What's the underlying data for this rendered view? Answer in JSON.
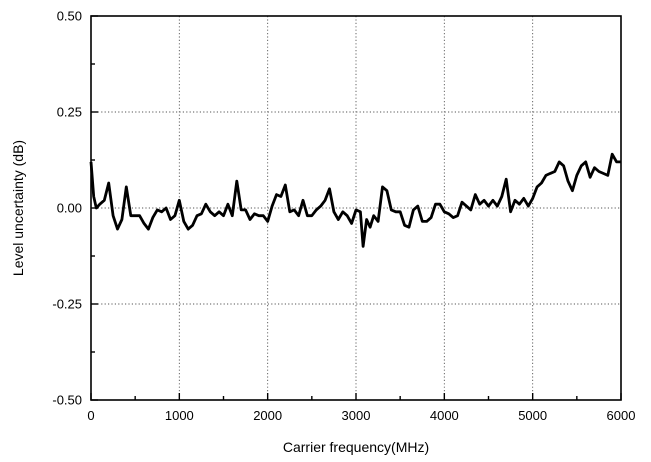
{
  "chart_data": {
    "type": "line",
    "title": "",
    "xlabel": "Carrier frequency(MHz)",
    "ylabel": "Level uncertainty (dB)",
    "xlim": [
      0,
      6000
    ],
    "ylim": [
      -0.5,
      0.5
    ],
    "grid": true,
    "xticks": [
      "0",
      "1000",
      "2000",
      "3000",
      "4000",
      "5000",
      "6000"
    ],
    "yticks": [
      "-0.50",
      "-0.25",
      "0.00",
      "0.25",
      "0.50"
    ],
    "series": [
      {
        "x": [
          0,
          30,
          60,
          100,
          150,
          200,
          250,
          300,
          350,
          400,
          450,
          500,
          550,
          600,
          650,
          700,
          750,
          800,
          850,
          900,
          950,
          1000,
          1050,
          1100,
          1150,
          1200,
          1250,
          1300,
          1350,
          1400,
          1450,
          1500,
          1550,
          1600,
          1650,
          1700,
          1750,
          1800,
          1850,
          1900,
          1950,
          2000,
          2050,
          2100,
          2150,
          2200,
          2250,
          2300,
          2350,
          2400,
          2450,
          2500,
          2550,
          2600,
          2650,
          2700,
          2750,
          2800,
          2850,
          2900,
          2950,
          3000,
          3050,
          3080,
          3120,
          3160,
          3200,
          3250,
          3300,
          3350,
          3400,
          3450,
          3500,
          3550,
          3600,
          3650,
          3700,
          3750,
          3800,
          3850,
          3900,
          3950,
          4000,
          4050,
          4100,
          4150,
          4200,
          4250,
          4300,
          4350,
          4400,
          4450,
          4500,
          4550,
          4600,
          4650,
          4700,
          4750,
          4800,
          4850,
          4900,
          4950,
          5000,
          5050,
          5100,
          5150,
          5200,
          5250,
          5300,
          5350,
          5400,
          5450,
          5500,
          5550,
          5600,
          5650,
          5700,
          5750,
          5800,
          5850,
          5900,
          5950,
          6000
        ],
        "values": [
          0.12,
          0.03,
          0.0,
          0.01,
          0.02,
          0.065,
          -0.02,
          -0.055,
          -0.03,
          0.055,
          -0.02,
          -0.02,
          -0.02,
          -0.04,
          -0.055,
          -0.025,
          -0.005,
          -0.01,
          0.0,
          -0.03,
          -0.02,
          0.02,
          -0.035,
          -0.055,
          -0.045,
          -0.02,
          -0.015,
          0.01,
          -0.01,
          -0.02,
          -0.01,
          -0.02,
          0.01,
          -0.02,
          0.07,
          -0.005,
          -0.005,
          -0.03,
          -0.015,
          -0.02,
          -0.02,
          -0.035,
          0.005,
          0.035,
          0.03,
          0.06,
          -0.01,
          -0.005,
          -0.02,
          0.02,
          -0.02,
          -0.02,
          -0.005,
          0.005,
          0.02,
          0.05,
          -0.01,
          -0.03,
          -0.01,
          -0.02,
          -0.04,
          -0.005,
          -0.01,
          -0.1,
          -0.03,
          -0.05,
          -0.02,
          -0.035,
          0.055,
          0.045,
          -0.005,
          -0.01,
          -0.01,
          -0.045,
          -0.05,
          -0.005,
          0.005,
          -0.035,
          -0.035,
          -0.025,
          0.01,
          0.01,
          -0.01,
          -0.015,
          -0.025,
          -0.02,
          0.015,
          0.005,
          -0.005,
          0.035,
          0.01,
          0.02,
          0.005,
          0.02,
          0.005,
          0.03,
          0.075,
          -0.01,
          0.02,
          0.01,
          0.025,
          0.005,
          0.025,
          0.055,
          0.065,
          0.085,
          0.09,
          0.095,
          0.12,
          0.11,
          0.07,
          0.045,
          0.085,
          0.11,
          0.12,
          0.08,
          0.105,
          0.095,
          0.09,
          0.085,
          0.14,
          0.12,
          0.12
        ]
      }
    ]
  }
}
